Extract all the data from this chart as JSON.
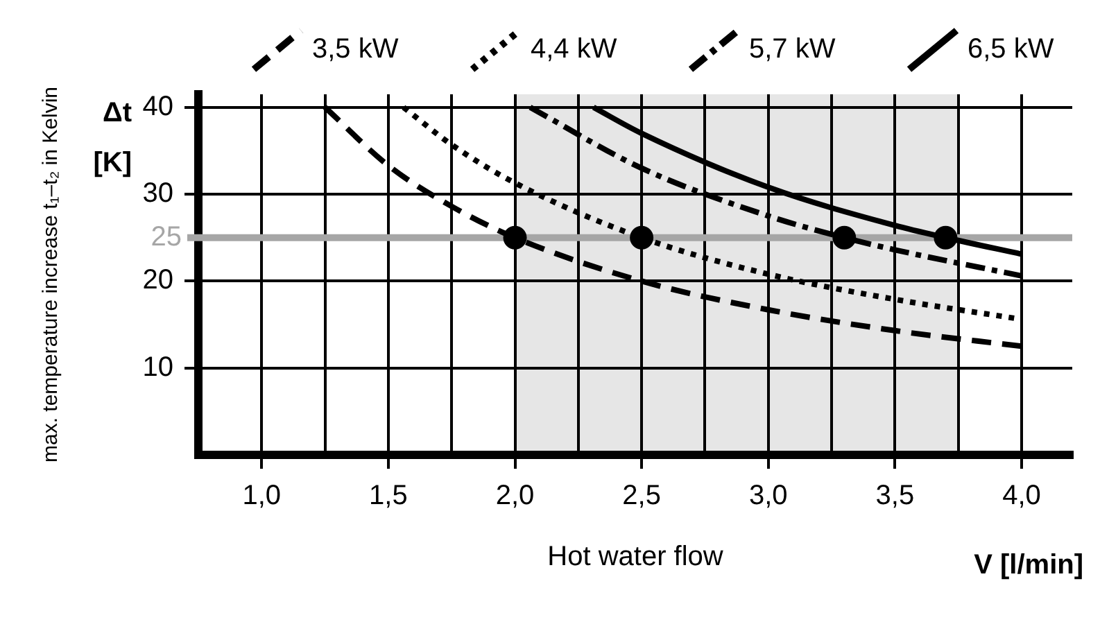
{
  "chart_data": {
    "type": "line",
    "xlabel": "Hot water flow",
    "ylabel": "max. temperature increase t₁–t₂ in Kelvin",
    "annotations": [
      "Δt [K]",
      "V [l/min]"
    ],
    "xlim": [
      0.75,
      4.2
    ],
    "xticks": [
      {
        "value": 1,
        "label": "1,0"
      },
      {
        "value": 1.25,
        "label": null
      },
      {
        "value": 1.5,
        "label": "1,5"
      },
      {
        "value": 1.75,
        "label": null
      },
      {
        "value": 2,
        "label": "2,0"
      },
      {
        "value": 2.25,
        "label": null
      },
      {
        "value": 2.5,
        "label": "2,5"
      },
      {
        "value": 2.75,
        "label": null
      },
      {
        "value": 3,
        "label": "3,0"
      },
      {
        "value": 3.25,
        "label": null
      },
      {
        "value": 3.5,
        "label": "3,5"
      },
      {
        "value": 3.75,
        "label": null
      },
      {
        "value": 4,
        "label": "4,0"
      }
    ],
    "ylim": [
      0,
      41.5
    ],
    "yticks": [
      10,
      20,
      30,
      40
    ],
    "grid": true,
    "legend": "top",
    "series": [
      {
        "name": "3,5 kW",
        "color": "#000000",
        "line_style": "dashed",
        "x": [
          1.25,
          1.5,
          1.75,
          2.0,
          2.5,
          3.0,
          3.5,
          4.0
        ],
        "values": [
          40,
          33.3,
          28.6,
          25,
          20,
          16.7,
          14.3,
          12.5
        ]
      },
      {
        "name": "4,4 kW",
        "color": "#000000",
        "line_style": "dotted",
        "x": [
          1.56,
          1.75,
          2.0,
          2.5,
          3.0,
          3.5,
          4.0
        ],
        "values": [
          40,
          35.7,
          31.3,
          25,
          20.8,
          17.9,
          15.6
        ]
      },
      {
        "name": "5,7 kW",
        "color": "#000000",
        "line_style": "dashdot",
        "x": [
          2.06,
          2.5,
          3.0,
          3.3,
          3.5,
          4.0
        ],
        "values": [
          40,
          33,
          27.5,
          25,
          23.6,
          20.6
        ]
      },
      {
        "name": "6,5 kW",
        "color": "#000000",
        "line_style": "solid",
        "x": [
          2.31,
          2.5,
          3.0,
          3.5,
          3.7,
          4.0
        ],
        "values": [
          40,
          37,
          30.8,
          26.4,
          25,
          23.1
        ]
      },
      {
        "type": "scatter",
        "color": "#000000",
        "marker": "circle",
        "x": [
          2.0,
          2.5,
          3.3,
          3.7
        ],
        "values": [
          25,
          25,
          25,
          25
        ]
      }
    ],
    "ref_lines": [
      {
        "axis": "y",
        "value": 25,
        "label": "25",
        "color": "#a6a6a6"
      }
    ],
    "bands": [
      {
        "axis": "x",
        "from": 2.0,
        "to": 3.75,
        "color": "#e6e6e6"
      }
    ]
  }
}
